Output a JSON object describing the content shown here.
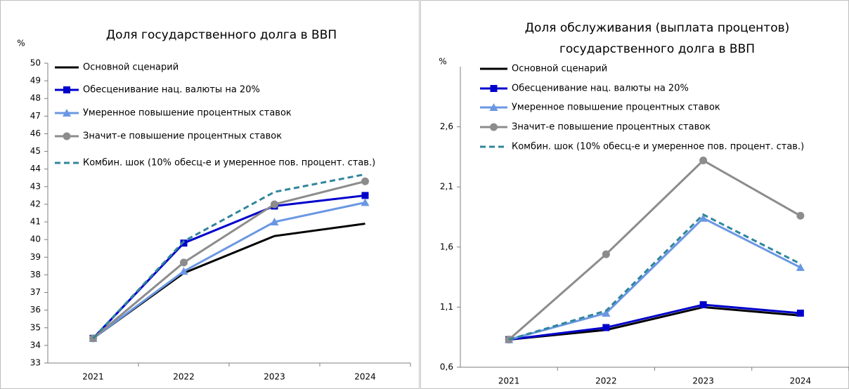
{
  "chart_data": [
    {
      "type": "line",
      "title": [
        "Доля государственного долга в ВВП"
      ],
      "y_label": "%",
      "categories": [
        "2021",
        "2022",
        "2023",
        "2024"
      ],
      "ylim": [
        33,
        50
      ],
      "yticks": [
        33,
        34,
        35,
        36,
        37,
        38,
        39,
        40,
        41,
        42,
        43,
        44,
        45,
        46,
        47,
        48,
        49,
        50
      ],
      "series": [
        {
          "name": "Основной сценарий",
          "color": "#000000",
          "marker": "none",
          "dash": false,
          "values": [
            34.4,
            38.1,
            40.2,
            40.9
          ]
        },
        {
          "name": "Обесценивание нац. валюты на 20%",
          "color": "#0000cc",
          "marker": "square",
          "dash": false,
          "values": [
            34.4,
            39.8,
            41.9,
            42.5
          ]
        },
        {
          "name": "Умеренное повышение процентных ставок",
          "color": "#6a97e3",
          "marker": "triangle",
          "dash": false,
          "values": [
            34.4,
            38.2,
            41.0,
            42.1
          ]
        },
        {
          "name": "Значит-е повышение процентных ставок",
          "color": "#8c8c8c",
          "marker": "circle",
          "dash": false,
          "values": [
            34.4,
            38.7,
            42.0,
            43.3
          ]
        },
        {
          "name": "Комбин. шок (10% обесц-е и умеренное пов. процент. став.)",
          "color": "#31859c",
          "marker": "none",
          "dash": true,
          "values": [
            34.4,
            39.9,
            42.7,
            43.7
          ]
        }
      ]
    },
    {
      "type": "line",
      "title": [
        "Доля обслуживания (выплата процентов)",
        "государственного  долга в ВВП"
      ],
      "y_label": "%",
      "categories": [
        "2021",
        "2022",
        "2023",
        "2024"
      ],
      "ylim": [
        0.6,
        3.1
      ],
      "yticks": [
        {
          "value": 0.6,
          "label": "0,6"
        },
        {
          "value": 1.1,
          "label": "1,1"
        },
        {
          "value": 1.6,
          "label": "1,6"
        },
        {
          "value": 2.1,
          "label": "2,1"
        },
        {
          "value": 2.6,
          "label": "2,6"
        }
      ],
      "series": [
        {
          "name": "Основной сценарий",
          "color": "#000000",
          "marker": "none",
          "dash": false,
          "values": [
            0.83,
            0.91,
            1.1,
            1.03
          ]
        },
        {
          "name": "Обесценивание нац. валюты на 20%",
          "color": "#0000cc",
          "marker": "square",
          "dash": false,
          "values": [
            0.83,
            0.93,
            1.12,
            1.05
          ]
        },
        {
          "name": "Умеренное повышение процентных ставок",
          "color": "#6a97e3",
          "marker": "triangle",
          "dash": false,
          "values": [
            0.83,
            1.05,
            1.84,
            1.43
          ]
        },
        {
          "name": "Значит-е повышение процентных ставок",
          "color": "#8c8c8c",
          "marker": "circle",
          "dash": false,
          "values": [
            0.83,
            1.54,
            2.32,
            1.86
          ]
        },
        {
          "name": "Комбин. шок (10% обесц-е и умеренное пов. процент. став.)",
          "color": "#31859c",
          "marker": "none",
          "dash": true,
          "values": [
            0.83,
            1.07,
            1.87,
            1.46
          ]
        }
      ]
    }
  ]
}
